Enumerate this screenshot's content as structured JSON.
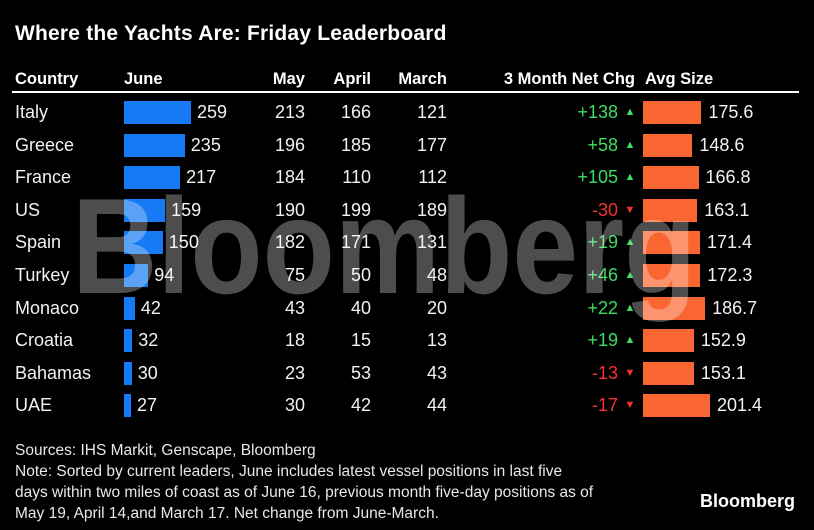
{
  "title": "Where the Yachts Are: Friday Leaderboard",
  "watermark": "Bloomberg",
  "colors": {
    "june_bar": "#157af3",
    "avg_bar": "#f96632",
    "positive": "#3edd63",
    "negative": "#f5332e",
    "header_rule": "#ffffff"
  },
  "footer": {
    "sources_line": "Sources: IHS Markit, Genscape, Bloomberg",
    "note_lines": [
      "Note: Sorted by current leaders, June includes latest vessel positions in last five",
      "days within two miles of coast as of June 16, previous month five-day positions as of",
      "May 19, April 14,and March 17. Net change from June-March."
    ],
    "logo": "Bloomberg"
  },
  "chart_data": {
    "type": "table",
    "title": "Where the Yachts Are: Friday Leaderboard",
    "columns": [
      "Country",
      "June",
      "May",
      "April",
      "March",
      "3 Month Net Chg",
      "Avg Size"
    ],
    "rows": [
      [
        "Italy",
        259,
        213,
        166,
        121,
        "+138",
        175.6
      ],
      [
        "Greece",
        235,
        196,
        185,
        177,
        "+58",
        148.6
      ],
      [
        "France",
        217,
        184,
        110,
        112,
        "+105",
        166.8
      ],
      [
        "US",
        159,
        190,
        199,
        189,
        "-30",
        163.1
      ],
      [
        "Spain",
        150,
        182,
        171,
        131,
        "+19",
        171.4
      ],
      [
        "Turkey",
        94,
        75,
        50,
        48,
        "+46",
        172.3
      ],
      [
        "Monaco",
        42,
        43,
        40,
        20,
        "+22",
        186.7
      ],
      [
        "Croatia",
        32,
        18,
        15,
        13,
        "+19",
        152.9
      ],
      [
        "Bahamas",
        30,
        23,
        53,
        43,
        "-13",
        153.1
      ],
      [
        "UAE",
        27,
        30,
        42,
        44,
        "-17",
        201.4
      ]
    ],
    "bar_columns": [
      "June",
      "Avg Size"
    ],
    "net_change_definition": "June minus March, green up / red down arrows",
    "sort": "Sorted by current leaders (June)",
    "legend_position": "none",
    "grid": false
  }
}
